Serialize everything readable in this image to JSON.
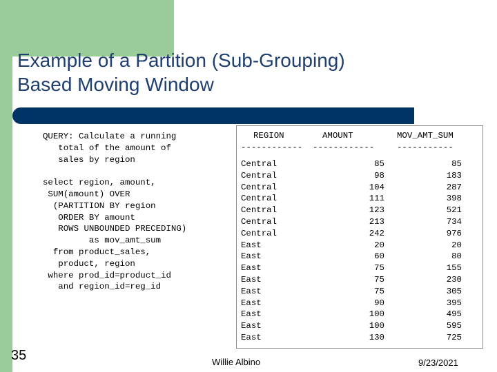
{
  "slide": {
    "title_line1": "Example of a Partition (Sub-Grouping)",
    "title_line2": "Based Moving Window",
    "slide_number": "35",
    "author": "Willie Albino",
    "date": "9/23/2021"
  },
  "query_lines": [
    "QUERY: Calculate a running",
    "   total of the amount of",
    "   sales by region",
    "",
    "select region, amount,",
    " SUM(amount) OVER",
    "  (PARTITION BY region",
    "   ORDER BY amount",
    "   ROWS UNBOUNDED PRECEDING)",
    "         as mov_amt_sum",
    "  from product_sales,",
    "   product, region",
    " where prod_id=product_id",
    "   and region_id=reg_id"
  ],
  "result": {
    "headers": {
      "region": "REGION",
      "amount": "AMOUNT",
      "mov": "MOV_AMT_SUM"
    },
    "separators": {
      "region": "------------",
      "amount": "------------",
      "mov": "-----------"
    },
    "rows": [
      {
        "region": "Central",
        "amount": "85",
        "mov": "85"
      },
      {
        "region": "Central",
        "amount": "98",
        "mov": "183"
      },
      {
        "region": "Central",
        "amount": "104",
        "mov": "287"
      },
      {
        "region": "Central",
        "amount": "111",
        "mov": "398"
      },
      {
        "region": "Central",
        "amount": "123",
        "mov": "521"
      },
      {
        "region": "Central",
        "amount": "213",
        "mov": "734"
      },
      {
        "region": "Central",
        "amount": "242",
        "mov": "976"
      },
      {
        "region": "East",
        "amount": "20",
        "mov": "20"
      },
      {
        "region": "East",
        "amount": "60",
        "mov": "80"
      },
      {
        "region": "East",
        "amount": "75",
        "mov": "155"
      },
      {
        "region": "East",
        "amount": "75",
        "mov": "230"
      },
      {
        "region": "East",
        "amount": "75",
        "mov": "305"
      },
      {
        "region": "East",
        "amount": "90",
        "mov": "395"
      },
      {
        "region": "East",
        "amount": "100",
        "mov": "495"
      },
      {
        "region": "East",
        "amount": "100",
        "mov": "595"
      },
      {
        "region": "East",
        "amount": "130",
        "mov": "725"
      }
    ]
  },
  "colors": {
    "accent_green": "#99cc99",
    "bar_navy": "#003366",
    "title_blue": "#1f3f6f"
  }
}
